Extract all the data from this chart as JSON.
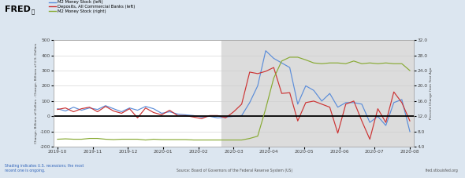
{
  "background_color": "#dce6f0",
  "plot_bg_white": "#ffffff",
  "plot_bg_gray": "#dcdcdc",
  "left_ylabel": "Change, Billions of Dollars . Change, Billions of U.S. Dollars",
  "right_ylabel": "Percent Change from Year Ago",
  "ylim_left": [
    -200,
    500
  ],
  "ylim_right": [
    4.0,
    32.0
  ],
  "yticks_left": [
    -200,
    -100,
    0,
    100,
    200,
    300,
    400,
    500
  ],
  "yticks_right": [
    4.0,
    8.0,
    12.0,
    16.0,
    20.0,
    24.0,
    28.0,
    32.0
  ],
  "xtick_labels": [
    "2019-10",
    "2019-11",
    "2019-12",
    "2020-01",
    "2020-02",
    "2020-03",
    "2020-04",
    "2020-05",
    "2020-06",
    "2020-07",
    "2020-08"
  ],
  "source_text": "Source: Board of Governors of the Federal Reserve System (US)",
  "shading_text": "Shading indicates U.S. recessions; the most\nrecent one is ongoing.",
  "fred_url": "fred.stlouisfed.org",
  "legend_entries": [
    "M2 Money Stock (left)",
    "Deposits, All Commercial Banks (left)",
    "M2 Money Stock (right)"
  ],
  "legend_colors": [
    "#5b8dd9",
    "#cc3333",
    "#88aa33"
  ],
  "m2_left": [
    50,
    35,
    60,
    40,
    55,
    45,
    70,
    50,
    30,
    55,
    40,
    65,
    50,
    20,
    30,
    15,
    10,
    5,
    -5,
    0,
    -10,
    -5,
    0,
    5,
    90,
    200,
    430,
    380,
    350,
    320,
    80,
    200,
    170,
    100,
    150,
    60,
    90,
    90,
    80,
    -40,
    0,
    -60,
    90,
    110,
    -100
  ],
  "deposits_left": [
    45,
    55,
    30,
    50,
    60,
    30,
    65,
    35,
    20,
    50,
    -10,
    55,
    25,
    10,
    40,
    5,
    5,
    -5,
    -15,
    5,
    5,
    -10,
    30,
    80,
    290,
    280,
    295,
    320,
    150,
    155,
    -30,
    90,
    100,
    80,
    60,
    -110,
    80,
    100,
    -30,
    -150,
    50,
    -40,
    160,
    90,
    -30
  ],
  "m2_right_pct": [
    6.0,
    6.1,
    6.0,
    6.0,
    6.2,
    6.2,
    6.0,
    5.9,
    6.0,
    6.0,
    6.0,
    5.8,
    6.0,
    5.9,
    5.9,
    5.9,
    5.9,
    5.8,
    5.8,
    5.8,
    5.8,
    5.8,
    5.8,
    5.8,
    6.2,
    6.8,
    14.0,
    22.0,
    26.5,
    27.5,
    27.5,
    26.8,
    26.0,
    25.8,
    26.0,
    26.0,
    25.8,
    26.5,
    25.8,
    26.0,
    25.8,
    26.0,
    25.8,
    25.8,
    24.0
  ],
  "recession_xstart": 20.5,
  "n_points": 45,
  "n_xticks": 11
}
